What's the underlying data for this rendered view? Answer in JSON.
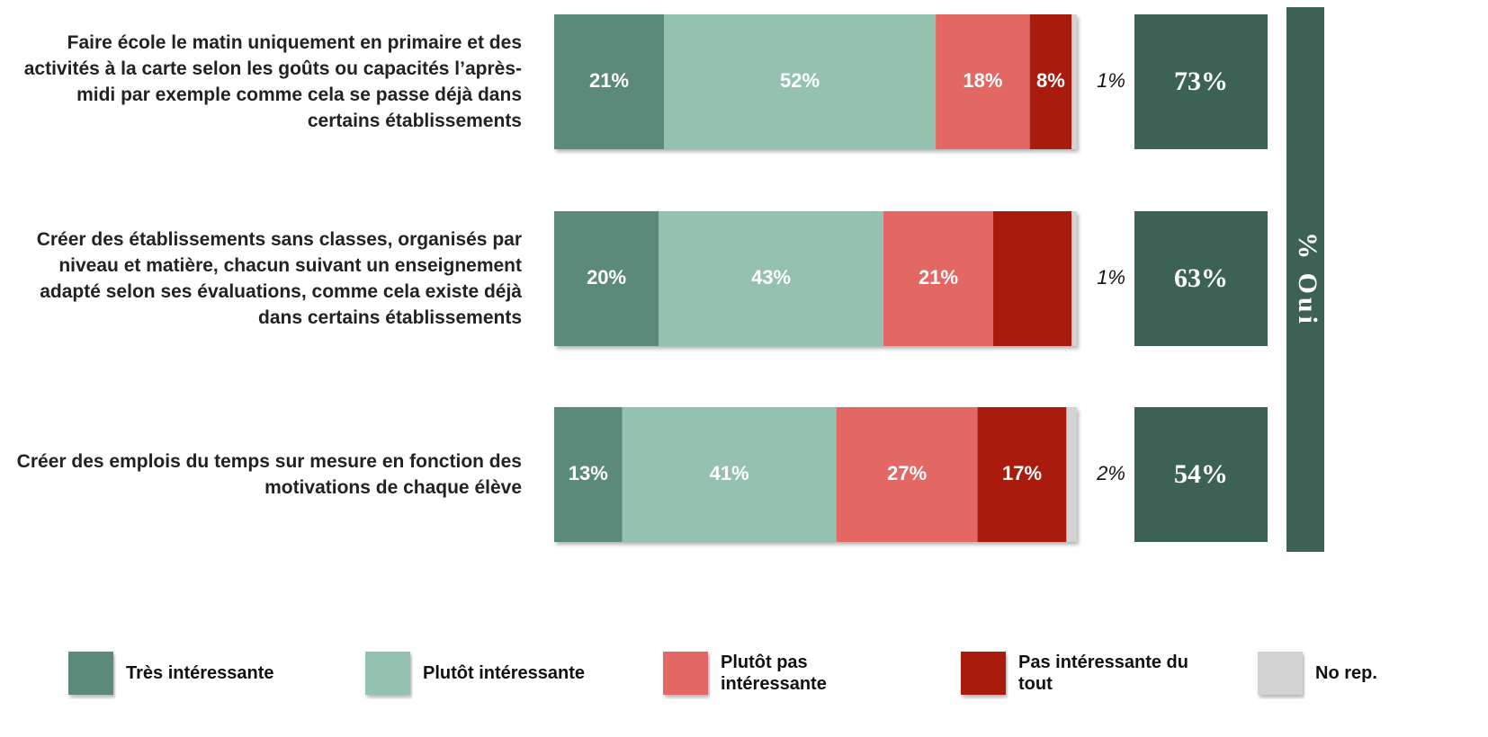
{
  "chart_data": {
    "type": "stacked-bar",
    "categories": [
      "Faire école le matin uniquement en primaire et des activités à la carte selon les goûts ou capacités l’après-midi par exemple comme cela se passe déjà dans certains établissements",
      "Créer des établissements sans classes, organisés par niveau et matière, chacun suivant un enseignement adapté selon ses évaluations, comme cela existe déjà dans certains établissements",
      "Créer des emplois du temps sur mesure en fonction des motivations de chaque élève"
    ],
    "xlim": [
      0,
      100
    ],
    "series": [
      {
        "name": "Très intéressante",
        "color": "#5b8a7a",
        "values": [
          21,
          20,
          13
        ],
        "value_labels": [
          "21%",
          "20%",
          "13%"
        ]
      },
      {
        "name": "Plutôt intéressante",
        "color": "#94c1b0",
        "values": [
          52,
          43,
          41
        ],
        "value_labels": [
          "52%",
          "43%",
          "41%"
        ]
      },
      {
        "name": "Plutôt pas intéressante",
        "color": "#e36763",
        "values": [
          18,
          21,
          27
        ],
        "value_labels": [
          "18%",
          "21%",
          "27%"
        ]
      },
      {
        "name": "Pas intéressante du tout",
        "color": "#a91a0e",
        "values": [
          8,
          15,
          17
        ],
        "value_labels": [
          "8%",
          null,
          "17%"
        ]
      },
      {
        "name": "No rep.",
        "color": "#d3d3d3",
        "values": [
          1,
          1,
          2
        ],
        "value_labels": [
          "1%",
          "1%",
          "2%"
        ]
      }
    ],
    "totals": {
      "title": "% Oui",
      "color": "#3b6255",
      "values": [
        73,
        63,
        54
      ],
      "value_labels": [
        "73%",
        "63%",
        "54%"
      ]
    }
  }
}
